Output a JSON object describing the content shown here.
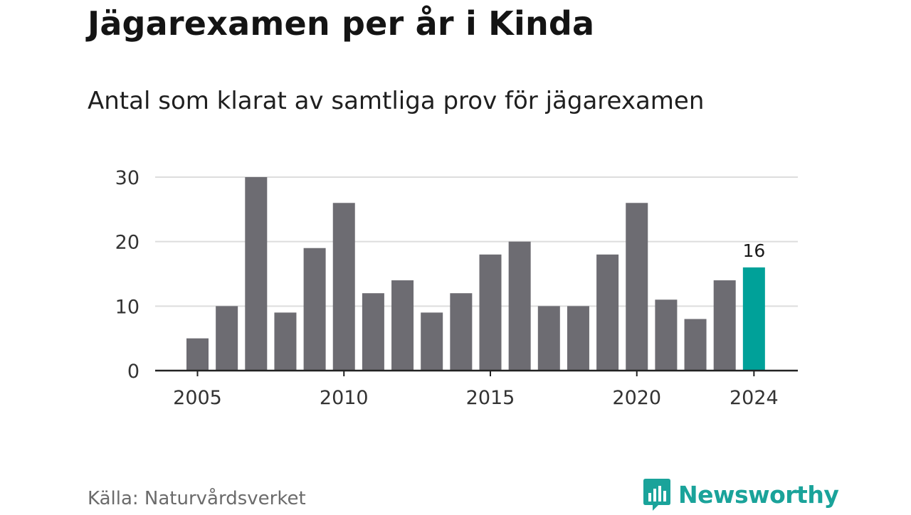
{
  "title": "Jägarexamen per år i Kinda",
  "subtitle": "Antal som klarat av samtliga prov för jägarexamen",
  "source": "Källa: Naturvårdsverket",
  "brand": {
    "name": "Newsworthy",
    "icon": "bar-chart-speech-bubble-icon",
    "color": "#1aa39a"
  },
  "colors": {
    "bar": "#6d6c72",
    "highlight": "#00a199",
    "grid": "#dddddd",
    "axis": "#222222"
  },
  "chart_data": {
    "type": "bar",
    "x": [
      2005,
      2006,
      2007,
      2008,
      2009,
      2010,
      2011,
      2012,
      2013,
      2014,
      2015,
      2016,
      2017,
      2018,
      2019,
      2020,
      2021,
      2022,
      2023,
      2024
    ],
    "values": [
      5,
      10,
      30,
      9,
      19,
      26,
      12,
      14,
      9,
      12,
      18,
      20,
      10,
      10,
      18,
      26,
      11,
      8,
      14,
      16
    ],
    "x_ticks": [
      "2005",
      "2010",
      "2015",
      "2020",
      "2024"
    ],
    "y_ticks": [
      "0",
      "10",
      "20",
      "30"
    ],
    "ylim": [
      0,
      30
    ],
    "grid": true,
    "highlight": {
      "x": 2024,
      "label": "16"
    }
  }
}
